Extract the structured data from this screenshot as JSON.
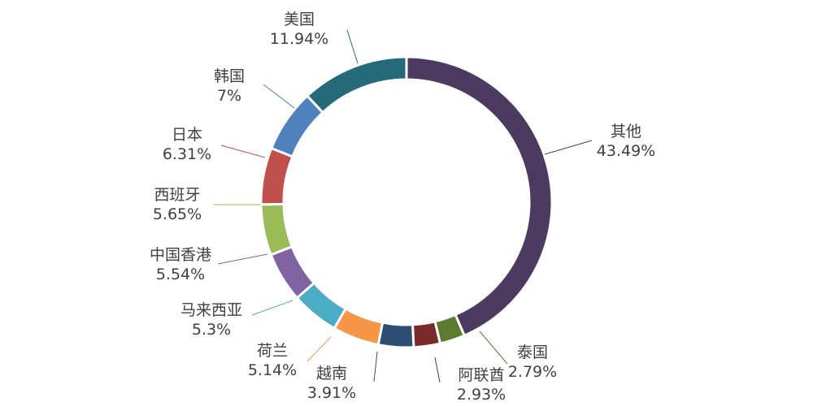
{
  "chart_data": {
    "type": "pie",
    "donut": true,
    "categories": [
      "其他",
      "泰国",
      "阿联酋",
      "越南",
      "荷兰",
      "马来西亚",
      "中国香港",
      "西班牙",
      "日本",
      "韩国",
      "美国"
    ],
    "values": [
      43.49,
      2.79,
      2.93,
      3.91,
      5.14,
      5.3,
      5.54,
      5.65,
      6.31,
      7,
      11.94
    ],
    "value_labels": [
      "43.49%",
      "2.79%",
      "2.93%",
      "3.91%",
      "5.14%",
      "5.3%",
      "5.54%",
      "5.65%",
      "6.31%",
      "7%",
      "11.94%"
    ],
    "colors": [
      "#4C3A60",
      "#5D7A2E",
      "#7A2A2A",
      "#2E4D73",
      "#F79646",
      "#4BACC6",
      "#8064A2",
      "#9BBB59",
      "#C0504D",
      "#4F81BD",
      "#256A78"
    ],
    "start": "12 o'clock",
    "direction": "clockwise",
    "legend": "none",
    "title": ""
  }
}
